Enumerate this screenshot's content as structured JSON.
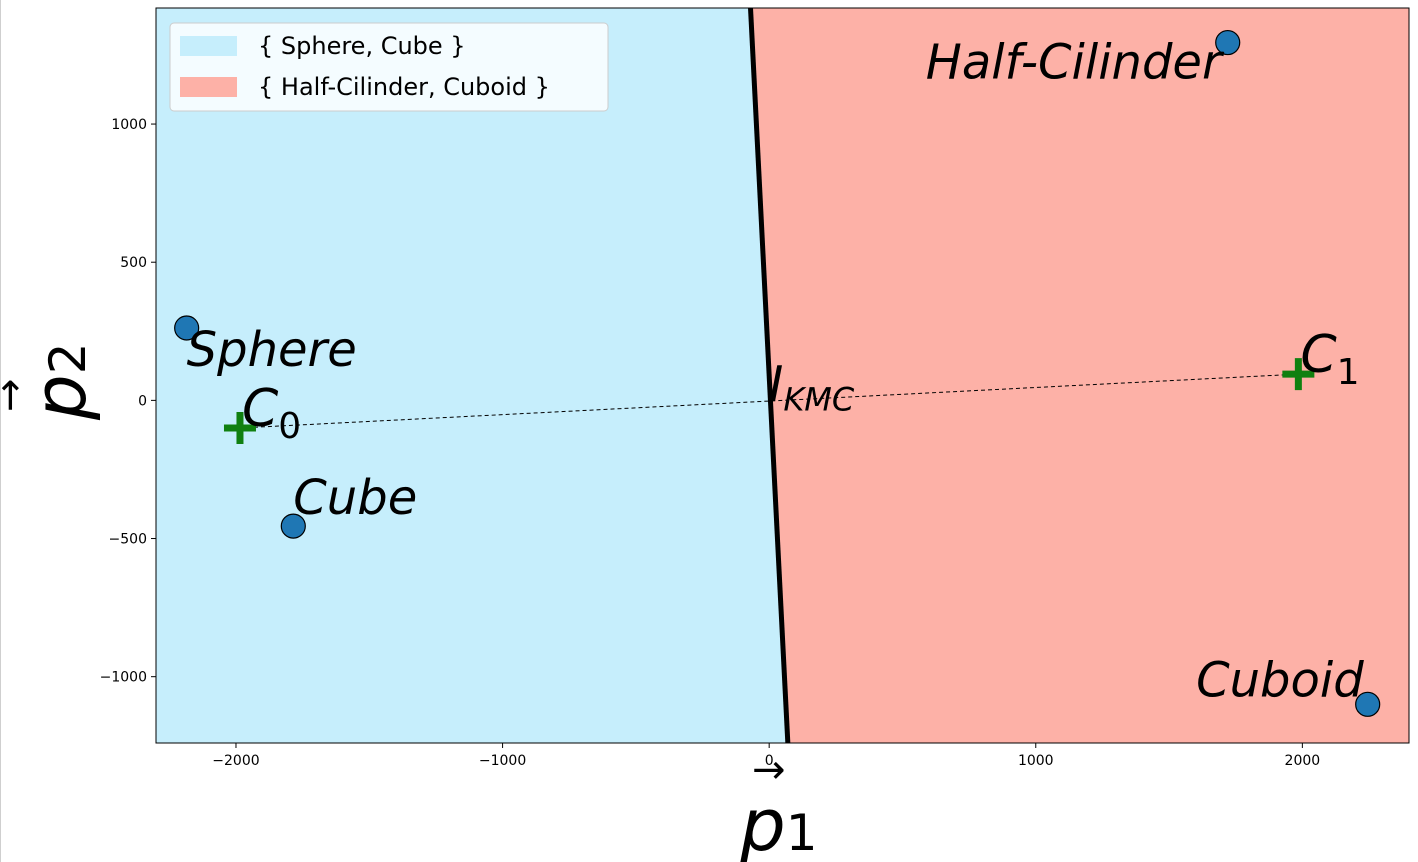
{
  "chart_data": {
    "type": "scatter",
    "title": "",
    "xlabel": "p",
    "xlabel_subscript": "1",
    "ylabel": "p",
    "ylabel_subscript": "2",
    "xlim": [
      -2300,
      2400
    ],
    "ylim": [
      -1240,
      1420
    ],
    "xticks": [
      -2000,
      -1000,
      0,
      1000,
      2000
    ],
    "xtick_labels": [
      "−2000",
      "−1000",
      "0",
      "1000",
      "2000"
    ],
    "yticks": [
      -1000,
      -500,
      0,
      500,
      1000
    ],
    "ytick_labels": [
      "−1000",
      "−500",
      "0",
      "500",
      "1000"
    ],
    "grid": false,
    "legend_position": "upper left",
    "regions": [
      {
        "name": "{ Sphere, Cube }",
        "color": "#c6eefc"
      },
      {
        "name": "{ Half-Cilinder, Cuboid }",
        "color": "#fdb1a7"
      }
    ],
    "boundary": {
      "points": [
        [
          -70,
          1420
        ],
        [
          70,
          -1240
        ]
      ],
      "color": "#000000"
    },
    "points": [
      {
        "label": "Sphere",
        "x": -2185,
        "y": 262
      },
      {
        "label": "Cube",
        "x": -1785,
        "y": -455
      },
      {
        "label": "Half-Cilinder",
        "x": 1720,
        "y": 1295
      },
      {
        "label": "Cuboid",
        "x": 2245,
        "y": -1100
      }
    ],
    "point_color": "#1f77b4",
    "centroids": [
      {
        "label": "C",
        "subscript": "0",
        "x": -1985,
        "y": -100
      },
      {
        "label": "C",
        "subscript": "1",
        "x": 1985,
        "y": 95
      }
    ],
    "centroid_color": "#108010",
    "connector": {
      "from": [
        -1985,
        -100
      ],
      "to": [
        1985,
        95
      ]
    },
    "intersection": {
      "label": "I",
      "subscript": "KMC",
      "x": 0,
      "y": 0
    }
  }
}
